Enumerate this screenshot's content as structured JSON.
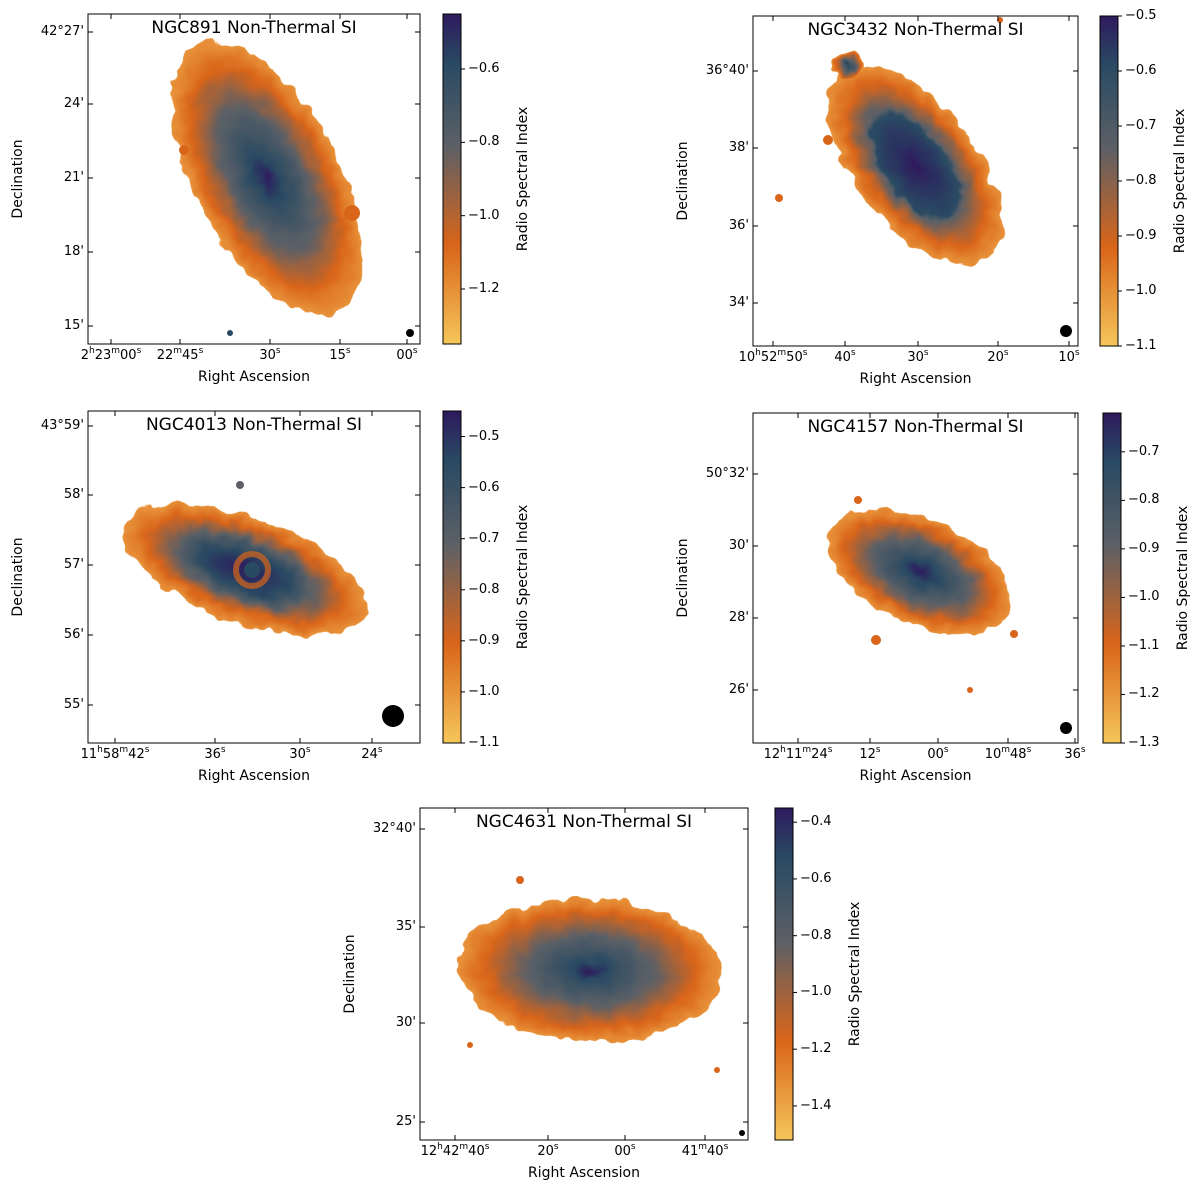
{
  "colors": {
    "high": "#2e1a5e",
    "mid_dark": "#294a63",
    "mid": "#5c6066",
    "mid_orange": "#d9651a",
    "low": "#f5c65a"
  },
  "chart_data": [
    {
      "type": "heatmap",
      "title": "NGC891 Non-Thermal SI",
      "xlabel": "Right Ascension",
      "ylabel": "Declination",
      "colorbar_label": "Radio Spectral Index",
      "xticks": [
        "2h23m00s",
        "22m45s",
        "30s",
        "15s",
        "00s"
      ],
      "yticks": [
        "42°27'",
        "24'",
        "21'",
        "18'",
        "15'"
      ],
      "cbar_ticks": [
        -0.6,
        -0.8,
        -1.0,
        -1.2
      ],
      "cbar_range": [
        -1.35,
        -0.45
      ]
    },
    {
      "type": "heatmap",
      "title": "NGC3432 Non-Thermal SI",
      "xlabel": "Right Ascension",
      "ylabel": "Declination",
      "colorbar_label": "Radio Spectral Index",
      "xticks": [
        "10h52m50s",
        "40s",
        "30s",
        "20s",
        "10s"
      ],
      "yticks": [
        "36°40'",
        "38'",
        "36'",
        "34'"
      ],
      "cbar_ticks": [
        -0.5,
        -0.6,
        -0.7,
        -0.8,
        -0.9,
        -1.0,
        -1.1
      ],
      "cbar_range": [
        -1.1,
        -0.5
      ]
    },
    {
      "type": "heatmap",
      "title": "NGC4013 Non-Thermal SI",
      "xlabel": "Right Ascension",
      "ylabel": "Declination",
      "colorbar_label": "Radio Spectral Index",
      "xticks": [
        "11h58m42s",
        "36s",
        "30s",
        "24s"
      ],
      "yticks": [
        "43°59'",
        "58'",
        "57'",
        "56'",
        "55'"
      ],
      "cbar_ticks": [
        -0.5,
        -0.6,
        -0.7,
        -0.8,
        -0.9,
        -1.0,
        -1.1
      ],
      "cbar_range": [
        -1.1,
        -0.45
      ]
    },
    {
      "type": "heatmap",
      "title": "NGC4157 Non-Thermal SI",
      "xlabel": "Right Ascension",
      "ylabel": "Declination",
      "colorbar_label": "Radio Spectral Index",
      "xticks": [
        "12h11m24s",
        "12s",
        "00s",
        "10m48s",
        "36s"
      ],
      "yticks": [
        "50°32'",
        "30'",
        "28'",
        "26'"
      ],
      "cbar_ticks": [
        -0.7,
        -0.8,
        -0.9,
        -1.0,
        -1.1,
        -1.2,
        -1.3
      ],
      "cbar_range": [
        -1.3,
        -0.62
      ]
    },
    {
      "type": "heatmap",
      "title": "NGC4631 Non-Thermal SI",
      "xlabel": "Right Ascension",
      "ylabel": "Declination",
      "colorbar_label": "Radio Spectral Index",
      "xticks": [
        "12h42m40s",
        "20s",
        "00s",
        "41m40s"
      ],
      "yticks": [
        "32°40'",
        "35'",
        "30'",
        "25'"
      ],
      "cbar_ticks": [
        -0.4,
        -0.6,
        -0.8,
        -1.0,
        -1.2,
        -1.4
      ],
      "cbar_range": [
        -1.52,
        -0.35
      ]
    }
  ]
}
